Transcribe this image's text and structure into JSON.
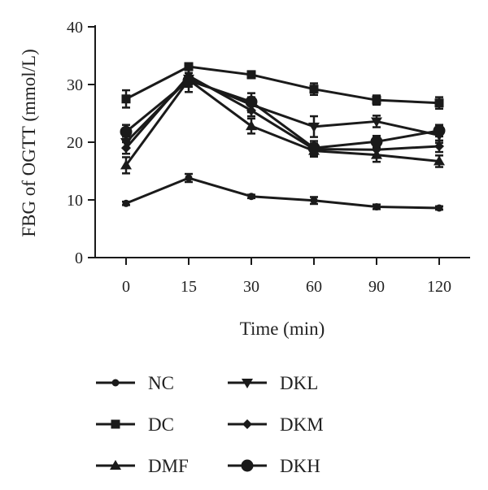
{
  "chart_data": {
    "type": "line",
    "title": "",
    "xlabel": "Time (min)",
    "ylabel": "FBG of OGTT (mmol/L)",
    "categories": [
      "0",
      "15",
      "30",
      "60",
      "90",
      "120"
    ],
    "ylim": [
      0,
      40
    ],
    "yticks": [
      0,
      10,
      20,
      30,
      40
    ],
    "grid": false,
    "legend_position": "bottom",
    "color": "#1a1a1a",
    "series": [
      {
        "name": "NC",
        "marker": "circle-small",
        "values": [
          9.4,
          13.8,
          10.6,
          9.9,
          8.8,
          8.6
        ],
        "errors": [
          0.3,
          0.7,
          0.3,
          0.6,
          0.4,
          0.3
        ]
      },
      {
        "name": "DC",
        "marker": "square",
        "values": [
          27.5,
          33.1,
          31.7,
          29.2,
          27.3,
          26.8
        ],
        "errors": [
          1.5,
          0.6,
          0.6,
          1.0,
          0.8,
          1.0
        ]
      },
      {
        "name": "DMF",
        "marker": "triangle-up",
        "values": [
          16.0,
          30.8,
          22.8,
          18.5,
          17.8,
          16.7
        ],
        "errors": [
          1.4,
          1.2,
          1.3,
          1.0,
          1.2,
          1.0
        ]
      },
      {
        "name": "DKL",
        "marker": "triangle-down",
        "values": [
          20.0,
          31.0,
          26.5,
          22.7,
          23.6,
          21.2
        ],
        "errors": [
          1.0,
          1.0,
          1.3,
          1.8,
          1.0,
          1.3
        ]
      },
      {
        "name": "DKM",
        "marker": "diamond",
        "values": [
          19.0,
          31.5,
          25.5,
          18.8,
          18.7,
          19.3
        ],
        "errors": [
          1.0,
          1.0,
          1.0,
          1.0,
          1.0,
          1.0
        ]
      },
      {
        "name": "DKH",
        "marker": "circle-large",
        "values": [
          21.8,
          30.7,
          27.0,
          19.0,
          20.1,
          22.0
        ],
        "errors": [
          1.2,
          2.0,
          1.5,
          1.2,
          1.0,
          1.0
        ]
      }
    ]
  }
}
